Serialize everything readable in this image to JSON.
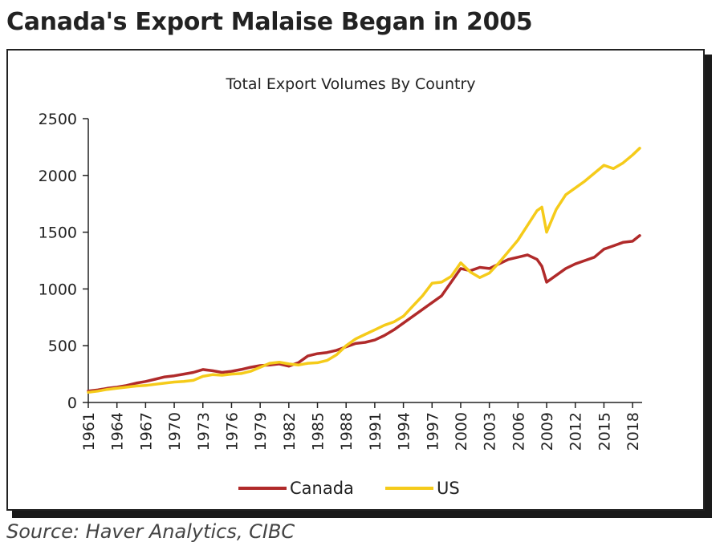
{
  "headline": "Canada's Export Malaise Began in 2005",
  "source": "Source: Haver Analytics, CIBC",
  "colors": {
    "canada": "#b02a2a",
    "us": "#f5cb1a",
    "axis": "#222222"
  },
  "chart_data": {
    "type": "line",
    "title": "Total Export Volumes By Country",
    "xlabel": "",
    "ylabel": "",
    "xlim": [
      1961,
      2019
    ],
    "ylim": [
      0,
      2500
    ],
    "y_ticks": [
      "0",
      "500",
      "1000",
      "1500",
      "2000",
      "2500"
    ],
    "x_ticks": [
      "1961",
      "1964",
      "1967",
      "1970",
      "1973",
      "1976",
      "1979",
      "1982",
      "1985",
      "1988",
      "1991",
      "1994",
      "1997",
      "2000",
      "2003",
      "2006",
      "2009",
      "2012",
      "2015",
      "2018"
    ],
    "grid": false,
    "legend_position": "bottom",
    "series": [
      {
        "name": "Canada",
        "color": "#b02a2a",
        "x": [
          1961,
          1962,
          1963,
          1964,
          1965,
          1966,
          1967,
          1968,
          1969,
          1970,
          1971,
          1972,
          1973,
          1974,
          1975,
          1976,
          1977,
          1978,
          1979,
          1980,
          1981,
          1982,
          1983,
          1984,
          1985,
          1986,
          1987,
          1988,
          1989,
          1990,
          1991,
          1992,
          1993,
          1994,
          1995,
          1996,
          1997,
          1998,
          1999,
          2000,
          2001,
          2002,
          2003,
          2004,
          2005,
          2006,
          2007,
          2008,
          2008.5,
          2009,
          2010,
          2011,
          2012,
          2013,
          2014,
          2015,
          2016,
          2017,
          2018,
          2018.75
        ],
        "values": [
          100,
          110,
          125,
          135,
          150,
          170,
          185,
          205,
          225,
          235,
          250,
          265,
          290,
          280,
          265,
          275,
          290,
          310,
          325,
          330,
          340,
          320,
          350,
          410,
          430,
          440,
          460,
          490,
          520,
          530,
          550,
          590,
          640,
          700,
          760,
          820,
          880,
          940,
          1060,
          1180,
          1160,
          1190,
          1180,
          1220,
          1260,
          1280,
          1300,
          1260,
          1200,
          1060,
          1120,
          1180,
          1220,
          1250,
          1280,
          1350,
          1380,
          1410,
          1420,
          1470
        ]
      },
      {
        "name": "US",
        "color": "#f5cb1a",
        "x": [
          1961,
          1962,
          1963,
          1964,
          1965,
          1966,
          1967,
          1968,
          1969,
          1970,
          1971,
          1972,
          1973,
          1974,
          1975,
          1976,
          1977,
          1978,
          1979,
          1980,
          1981,
          1982,
          1983,
          1984,
          1985,
          1986,
          1987,
          1988,
          1989,
          1990,
          1991,
          1992,
          1993,
          1994,
          1995,
          1996,
          1997,
          1998,
          1999,
          2000,
          2001,
          2002,
          2003,
          2004,
          2005,
          2006,
          2007,
          2008,
          2008.5,
          2009,
          2010,
          2011,
          2012,
          2013,
          2014,
          2015,
          2016,
          2017,
          2018,
          2018.75
        ],
        "values": [
          90,
          100,
          115,
          125,
          135,
          145,
          150,
          160,
          170,
          180,
          185,
          195,
          230,
          245,
          240,
          250,
          255,
          275,
          310,
          345,
          355,
          340,
          330,
          345,
          350,
          370,
          420,
          500,
          560,
          600,
          640,
          680,
          710,
          760,
          850,
          940,
          1050,
          1060,
          1110,
          1230,
          1150,
          1100,
          1140,
          1230,
          1330,
          1430,
          1560,
          1690,
          1720,
          1500,
          1700,
          1830,
          1890,
          1950,
          2020,
          2090,
          2060,
          2110,
          2180,
          2240
        ]
      }
    ]
  }
}
